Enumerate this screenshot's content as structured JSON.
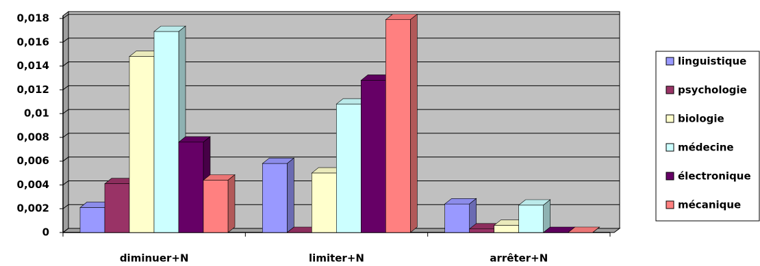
{
  "chart_data": {
    "type": "bar",
    "categories": [
      "diminuer+N",
      "limiter+N",
      "arrêter+N"
    ],
    "series": [
      {
        "name": "linguistique",
        "color": "#9999ff",
        "values": [
          0.0021,
          0.0058,
          0.0024
        ]
      },
      {
        "name": "psychologie",
        "color": "#993366",
        "values": [
          0.0041,
          0,
          0.0003
        ]
      },
      {
        "name": "biologie",
        "color": "#ffffcc",
        "values": [
          0.0148,
          0.005,
          0.0006
        ]
      },
      {
        "name": "médecine",
        "color": "#ccffff",
        "values": [
          0.0169,
          0.0108,
          0.0023
        ]
      },
      {
        "name": "électronique",
        "color": "#660066",
        "values": [
          0.0076,
          0.0128,
          0
        ]
      },
      {
        "name": "mécanique",
        "color": "#ff8080",
        "values": [
          0.0044,
          0.0179,
          0
        ]
      }
    ],
    "ylim": [
      0,
      0.018
    ],
    "yticks": [
      0,
      {
        "value": 0.002,
        "label": "0,002"
      },
      {
        "value": 0.004,
        "label": "0,004"
      },
      {
        "value": 0.006,
        "label": "0,006"
      },
      {
        "value": 0.008,
        "label": "0,008"
      },
      {
        "value": 0.01,
        "label": "0,01"
      },
      {
        "value": 0.012,
        "label": "0,012"
      },
      {
        "value": 0.014,
        "label": "0,014"
      },
      {
        "value": 0.016,
        "label": "0,016"
      },
      {
        "value": 0.018,
        "label": "0,018"
      }
    ],
    "grid": true,
    "legend": "right",
    "wall_color": "#c0c0c0"
  }
}
